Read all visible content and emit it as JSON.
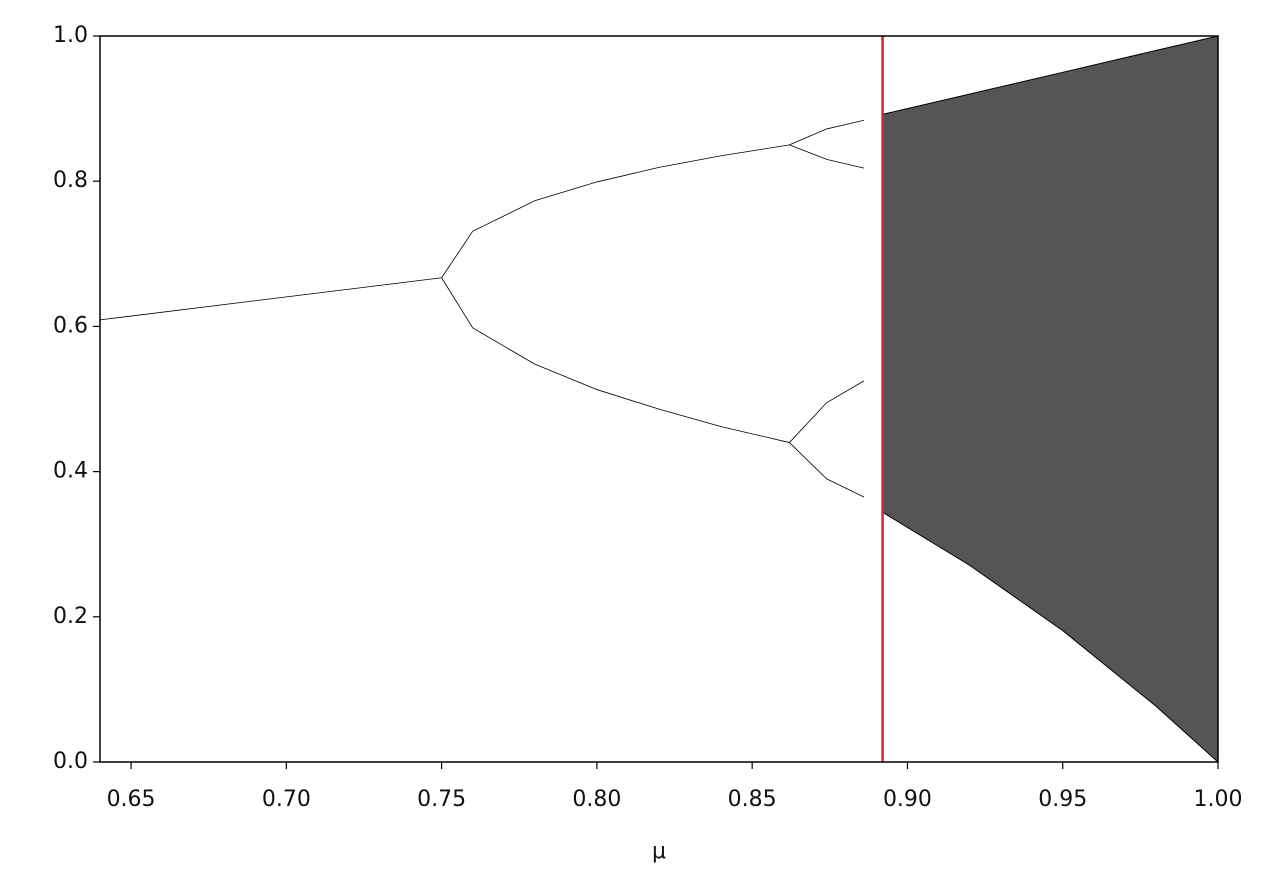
{
  "chart_data": {
    "type": "line",
    "xlabel": "μ",
    "xlim": [
      0.64,
      1.0
    ],
    "ylim": [
      0.0,
      1.0
    ],
    "xticks": [
      {
        "value": 0.65,
        "label": "0.65"
      },
      {
        "value": 0.7,
        "label": "0.70"
      },
      {
        "value": 0.75,
        "label": "0.75"
      },
      {
        "value": 0.8,
        "label": "0.80"
      },
      {
        "value": 0.85,
        "label": "0.85"
      },
      {
        "value": 0.9,
        "label": "0.90"
      },
      {
        "value": 0.95,
        "label": "0.95"
      },
      {
        "value": 1.0,
        "label": "1.00"
      }
    ],
    "yticks": [
      {
        "value": 0,
        "label": "0.0"
      },
      0.2,
      0.4,
      0.6,
      0.8,
      {
        "value": 1,
        "label": "1.0"
      }
    ],
    "series": [
      {
        "color": "#000000",
        "x": [
          0.64,
          0.75
        ],
        "values": [
          0.609,
          0.667
        ]
      },
      {
        "color": "#000000",
        "x": [
          0.75,
          0.76,
          0.78,
          0.8,
          0.82,
          0.84,
          0.862
        ],
        "values": [
          0.667,
          0.731,
          0.773,
          0.799,
          0.819,
          0.835,
          0.85
        ]
      },
      {
        "color": "#000000",
        "x": [
          0.75,
          0.76,
          0.78,
          0.8,
          0.82,
          0.84,
          0.862
        ],
        "values": [
          0.667,
          0.598,
          0.548,
          0.513,
          0.486,
          0.462,
          0.44
        ]
      },
      {
        "color": "#000000",
        "x": [
          0.862,
          0.874,
          0.886
        ],
        "values": [
          0.85,
          0.872,
          0.884
        ]
      },
      {
        "color": "#000000",
        "x": [
          0.862,
          0.874,
          0.886
        ],
        "values": [
          0.85,
          0.83,
          0.818
        ]
      },
      {
        "color": "#000000",
        "x": [
          0.862,
          0.874,
          0.886
        ],
        "values": [
          0.44,
          0.495,
          0.525
        ]
      },
      {
        "color": "#000000",
        "x": [
          0.862,
          0.874,
          0.886
        ],
        "values": [
          0.44,
          0.39,
          0.365
        ]
      },
      {
        "type": "band",
        "color": "#2a2a2a",
        "x": [
          0.892,
          0.92,
          0.95,
          0.98,
          1.0
        ],
        "values": [
          0.892,
          0.92,
          0.95,
          0.98,
          1.0
        ],
        "lower": [
          0.344,
          0.271,
          0.181,
          0.077,
          0.0
        ]
      }
    ],
    "vline": {
      "value": 0.892,
      "color": "#d62728"
    }
  }
}
